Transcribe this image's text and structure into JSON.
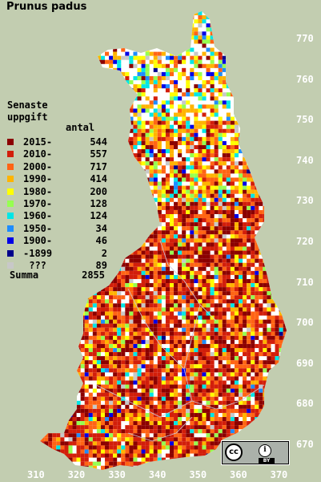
{
  "title": "Prunus padus",
  "legend": {
    "heading_line1": "Senaste",
    "heading_line2": "uppgift",
    "count_header": "antal",
    "items": [
      {
        "label": "2015-",
        "count": "544",
        "color": "#8b0000"
      },
      {
        "label": "2010-",
        "count": "557",
        "color": "#d21e0a"
      },
      {
        "label": "2000-",
        "count": "717",
        "color": "#ff6414"
      },
      {
        "label": "1990-",
        "count": "414",
        "color": "#ffb400"
      },
      {
        "label": "1980-",
        "count": "200",
        "color": "#ffff00"
      },
      {
        "label": "1970-",
        "count": "128",
        "color": "#96ff50"
      },
      {
        "label": "1960-",
        "count": "124",
        "color": "#00e6e6"
      },
      {
        "label": "1950-",
        "count": "34",
        "color": "#1e8cff"
      },
      {
        "label": "1900-",
        "count": "46",
        "color": "#0000e6"
      },
      {
        "label": "-1899",
        "count": "2",
        "color": "#00008b"
      },
      {
        "label": " ???",
        "count": "89",
        "color": "#c8c8c8"
      }
    ],
    "total_label": "Summa",
    "total_count": "2855"
  },
  "axes": {
    "y_ticks": [
      "770",
      "760",
      "750",
      "740",
      "730",
      "720",
      "710",
      "700",
      "690",
      "680",
      "670"
    ],
    "x_ticks": [
      "310",
      "320",
      "330",
      "340",
      "350",
      "360",
      "370"
    ]
  },
  "license": {
    "cc_text": "cc",
    "by_icon": "i",
    "by_text": "BY"
  },
  "colors": {
    "background": "#c2cdb0",
    "land_empty": "#ffffff",
    "county_border": "#c8c8dc"
  },
  "icons": [
    "creative-commons-icon",
    "attribution-icon"
  ]
}
